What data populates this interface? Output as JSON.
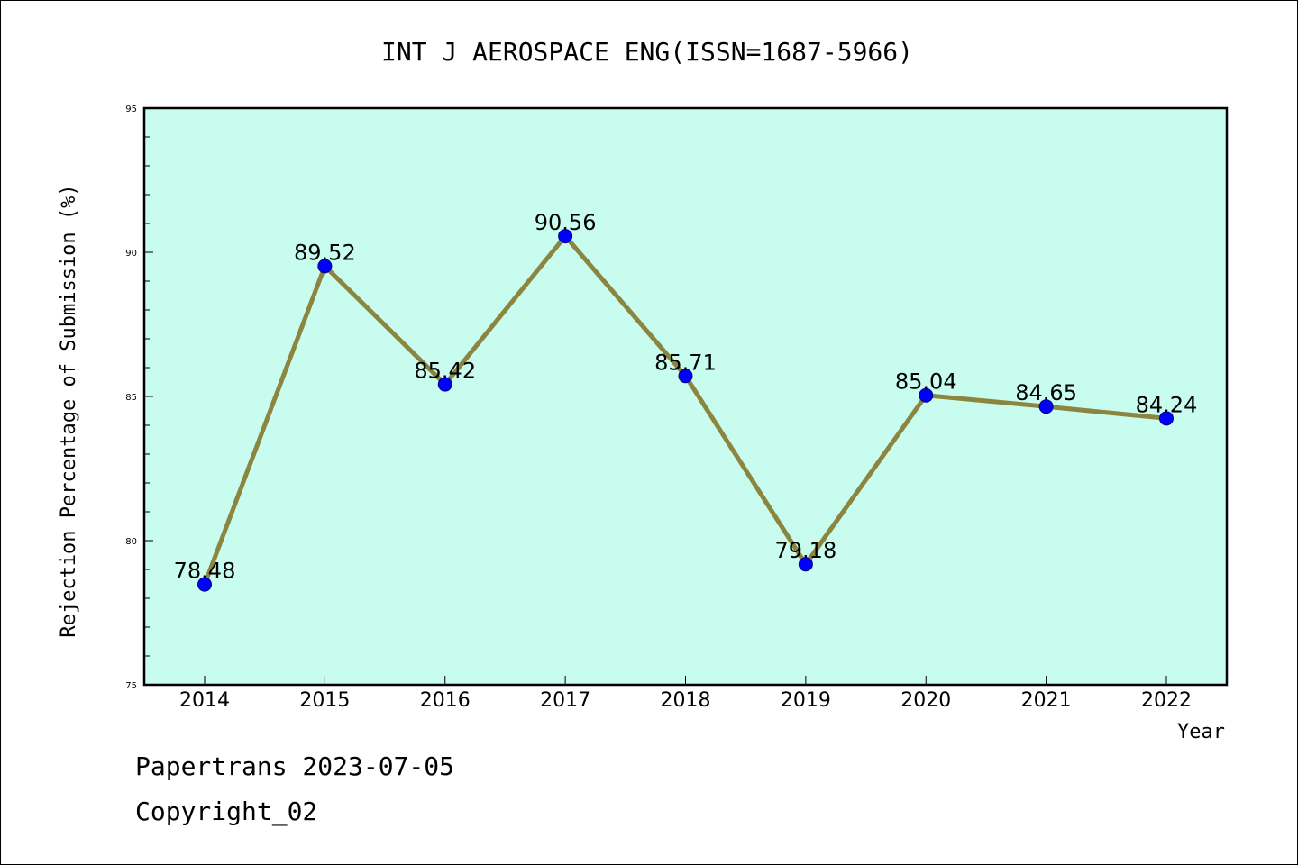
{
  "chart_data": {
    "type": "line",
    "title": "INT J AEROSPACE ENG(ISSN=1687-5966)",
    "xlabel": "Year",
    "ylabel": "Rejection Percentage of Submission (%)",
    "categories": [
      "2014",
      "2015",
      "2016",
      "2017",
      "2018",
      "2019",
      "2020",
      "2021",
      "2022"
    ],
    "values": [
      78.48,
      89.52,
      85.42,
      90.56,
      85.71,
      79.18,
      85.04,
      84.65,
      84.24
    ],
    "data_labels": [
      "78.48",
      "89.52",
      "85.42",
      "90.56",
      "85.71",
      "79.18",
      "85.04",
      "84.65",
      "84.24"
    ],
    "ylim": [
      75,
      95
    ],
    "yticks": [
      "75",
      "80",
      "85",
      "90",
      "95"
    ],
    "grid": false,
    "line_color": "#8B8540",
    "marker_color": "#0000FF",
    "plot_background": "#C8FCEE"
  },
  "footer": {
    "line1": "Papertrans 2023-07-05",
    "line2": "Copyright_02"
  }
}
